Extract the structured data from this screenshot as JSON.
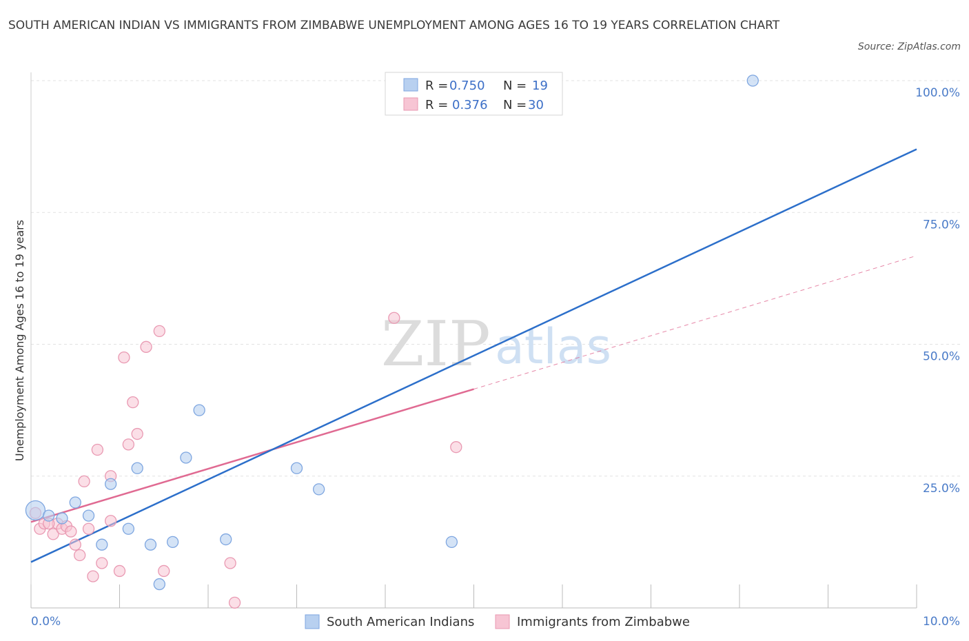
{
  "title": "SOUTH AMERICAN INDIAN VS IMMIGRANTS FROM ZIMBABWE UNEMPLOYMENT AMONG AGES 16 TO 19 YEARS CORRELATION CHART",
  "source": "Source: ZipAtlas.com",
  "watermark": {
    "zip": "ZIP",
    "atlas": "atlas"
  },
  "colors": {
    "blue_fill": "#b8d0f0",
    "blue_stroke": "#7ea6e0",
    "blue_line": "#2c6fca",
    "pink_fill": "#f7c5d4",
    "pink_stroke": "#e999b2",
    "pink_line": "#e06a92",
    "grid": "#e2e2e2",
    "axis_label": "#4a7bc8"
  },
  "legend": {
    "rows": [
      {
        "r_label": "R =",
        "r_value": "0.750",
        "n_label": "N =",
        "n_value": "19"
      },
      {
        "r_label": "R =",
        "r_value": "0.376",
        "n_label": "N =",
        "n_value": "30"
      }
    ]
  },
  "bottom_legend": {
    "series1": "South American Indians",
    "series2": "Immigrants from Zimbabwe"
  },
  "chart_data": {
    "type": "scatter",
    "title": "SOUTH AMERICAN INDIAN VS IMMIGRANTS FROM ZIMBABWE UNEMPLOYMENT AMONG AGES 16 TO 19 YEARS CORRELATION CHART",
    "xlabel": "",
    "ylabel": "Unemployment Among Ages 16 to 19 years",
    "xlim": [
      0,
      10
    ],
    "ylim": [
      0,
      100
    ],
    "x_tick_labels": [
      "0.0%",
      "10.0%"
    ],
    "y_ticks": [
      25,
      50,
      75,
      100
    ],
    "y_tick_labels": [
      "25.0%",
      "50.0%",
      "75.0%",
      "100.0%"
    ],
    "grid": true,
    "series": [
      {
        "name": "South American Indians",
        "r": 0.75,
        "n": 19,
        "points": [
          [
            0.05,
            18.5
          ],
          [
            0.2,
            17.5
          ],
          [
            0.35,
            17.0
          ],
          [
            0.5,
            20.0
          ],
          [
            0.65,
            17.5
          ],
          [
            0.8,
            12.0
          ],
          [
            0.9,
            23.5
          ],
          [
            1.1,
            15.0
          ],
          [
            1.2,
            26.5
          ],
          [
            1.35,
            12.0
          ],
          [
            1.45,
            4.5
          ],
          [
            1.6,
            12.5
          ],
          [
            1.75,
            28.5
          ],
          [
            1.9,
            37.5
          ],
          [
            2.2,
            13.0
          ],
          [
            3.0,
            26.5
          ],
          [
            3.25,
            22.5
          ],
          [
            4.75,
            12.5
          ],
          [
            8.15,
            100.0
          ]
        ],
        "trend": {
          "x": [
            0,
            10
          ],
          "y": [
            8.7,
            87.0
          ],
          "style": "solid"
        }
      },
      {
        "name": "Immigrants from Zimbabwe",
        "r": 0.376,
        "n": 30,
        "points": [
          [
            0.05,
            18.0
          ],
          [
            0.1,
            15.0
          ],
          [
            0.15,
            16.0
          ],
          [
            0.25,
            14.0
          ],
          [
            0.3,
            16.0
          ],
          [
            0.35,
            15.0
          ],
          [
            0.4,
            15.5
          ],
          [
            0.45,
            14.5
          ],
          [
            0.5,
            12.0
          ],
          [
            0.55,
            10.0
          ],
          [
            0.6,
            24.0
          ],
          [
            0.65,
            15.0
          ],
          [
            0.7,
            6.0
          ],
          [
            0.75,
            30.0
          ],
          [
            0.8,
            8.5
          ],
          [
            0.9,
            25.0
          ],
          [
            0.9,
            16.5
          ],
          [
            1.0,
            7.0
          ],
          [
            1.05,
            47.5
          ],
          [
            1.1,
            31.0
          ],
          [
            1.15,
            39.0
          ],
          [
            1.2,
            33.0
          ],
          [
            1.3,
            49.5
          ],
          [
            1.45,
            52.5
          ],
          [
            1.5,
            7.0
          ],
          [
            2.25,
            8.5
          ],
          [
            2.3,
            1.0
          ],
          [
            4.1,
            55.0
          ],
          [
            4.8,
            30.5
          ],
          [
            0.2,
            16.0
          ]
        ],
        "trend": {
          "x": [
            0,
            5.0
          ],
          "y": [
            16.3,
            41.5
          ],
          "style": "solid"
        },
        "trend_extension": {
          "x": [
            5.0,
            10
          ],
          "y": [
            41.5,
            66.8
          ],
          "style": "dashed"
        }
      }
    ]
  }
}
